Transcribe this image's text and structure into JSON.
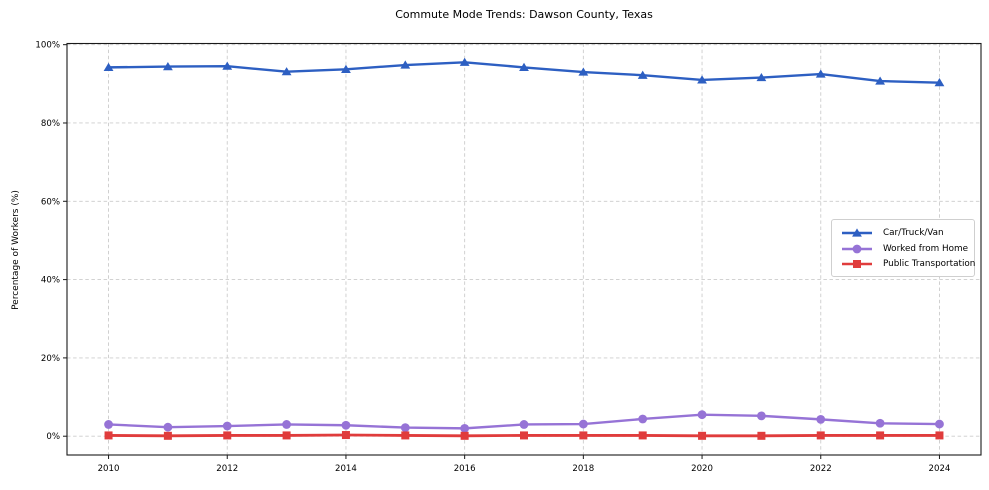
{
  "chart_data": {
    "type": "line",
    "title": "Commute Mode Trends: Dawson County, Texas",
    "xlabel": "",
    "ylabel": "Percentage of Workers (%)",
    "x": [
      2010,
      2011,
      2012,
      2013,
      2014,
      2015,
      2016,
      2017,
      2018,
      2019,
      2020,
      2021,
      2022,
      2023,
      2024
    ],
    "series": [
      {
        "name": "Car/Truck/Van",
        "color": "#2d5fc2",
        "marker": "triangle",
        "line_width": 2.4,
        "values": [
          94.2,
          94.4,
          94.5,
          93.1,
          93.7,
          94.8,
          95.5,
          94.2,
          93.0,
          92.2,
          91.0,
          91.6,
          92.5,
          90.7,
          90.3
        ]
      },
      {
        "name": "Worked from Home",
        "color": "#9673d6",
        "marker": "circle",
        "line_width": 2.4,
        "values": [
          3.0,
          2.3,
          2.6,
          3.0,
          2.8,
          2.2,
          2.0,
          3.0,
          3.1,
          4.4,
          5.5,
          5.2,
          4.3,
          3.3,
          3.1
        ]
      },
      {
        "name": "Public Transportation",
        "color": "#e03c3c",
        "marker": "square",
        "line_width": 2.8,
        "values": [
          0.2,
          0.1,
          0.2,
          0.2,
          0.3,
          0.2,
          0.1,
          0.2,
          0.2,
          0.2,
          0.1,
          0.1,
          0.2,
          0.2,
          0.2
        ]
      }
    ],
    "x_ticks": [
      2010,
      2012,
      2014,
      2016,
      2018,
      2020,
      2022,
      2024
    ],
    "y_ticks": [
      0,
      20,
      40,
      60,
      80,
      100
    ],
    "y_tick_suffix": "%",
    "xlim": [
      2009.3,
      2024.7
    ],
    "ylim": [
      -4.8,
      100.3
    ],
    "grid": "dashed",
    "legend": {
      "position": "middle-right",
      "entries": [
        "Car/Truck/Van",
        "Worked from Home",
        "Public Transportation"
      ]
    }
  },
  "colors": {
    "background": "#ffffff",
    "grid": "#cccccc",
    "frame": "#1a1a1a",
    "text": "#000000"
  }
}
